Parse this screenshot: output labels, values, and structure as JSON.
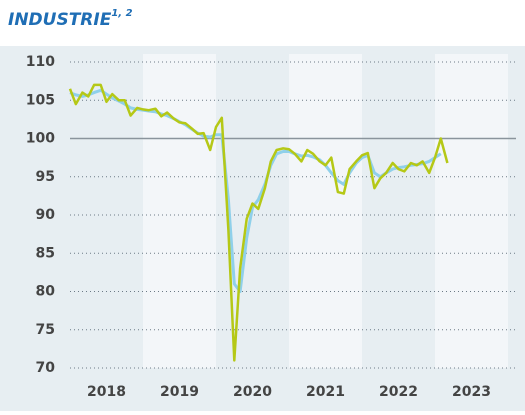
{
  "chart_data": {
    "type": "line",
    "title": "INDUSTRIE",
    "title_superscript": "1, 2",
    "x": [
      2018.0,
      2018.08,
      2018.17,
      2018.25,
      2018.33,
      2018.42,
      2018.5,
      2018.58,
      2018.67,
      2018.75,
      2018.83,
      2018.92,
      2019.0,
      2019.08,
      2019.17,
      2019.25,
      2019.33,
      2019.42,
      2019.5,
      2019.58,
      2019.67,
      2019.75,
      2019.83,
      2019.92,
      2020.0,
      2020.08,
      2020.17,
      2020.25,
      2020.33,
      2020.42,
      2020.5,
      2020.58,
      2020.67,
      2020.75,
      2020.83,
      2020.92,
      2021.0,
      2021.08,
      2021.17,
      2021.25,
      2021.33,
      2021.42,
      2021.5,
      2021.58,
      2021.67,
      2021.75,
      2021.83,
      2021.92,
      2022.0,
      2022.08,
      2022.17,
      2022.25,
      2022.33,
      2022.42,
      2022.5,
      2022.58,
      2022.67,
      2022.75,
      2022.83,
      2022.92,
      2023.0,
      2023.08,
      2023.17
    ],
    "series": [
      {
        "color": "#8fd0ea",
        "values": [
          106,
          105.7,
          105.5,
          105.7,
          106,
          106.3,
          105.8,
          105.3,
          104.9,
          104.5,
          104,
          103.8,
          103.7,
          103.6,
          103.5,
          103.2,
          103,
          102.6,
          102.2,
          101.8,
          101.2,
          100.7,
          100.3,
          100.2,
          100.5,
          100.5,
          92,
          81,
          80,
          87,
          91,
          92,
          94,
          96.5,
          98,
          98.3,
          98.3,
          98,
          97.7,
          97.8,
          97.6,
          97.2,
          96.5,
          95.5,
          94.5,
          94,
          95.5,
          96.8,
          97.5,
          97.8,
          95.5,
          95,
          95.5,
          96,
          96.2,
          96.3,
          96.5,
          96.6,
          96.7,
          97,
          97.5,
          98,
          null
        ]
      },
      {
        "color": "#b5c816",
        "values": [
          106.5,
          104.5,
          106,
          105.5,
          107,
          107,
          104.8,
          105.8,
          105,
          105,
          103,
          104,
          103.8,
          103.7,
          103.9,
          102.9,
          103.4,
          102.6,
          102.1,
          102,
          101.3,
          100.6,
          100.7,
          98.5,
          101.5,
          102.7,
          88,
          71,
          83,
          89.5,
          91.5,
          90.8,
          93.5,
          97,
          98.5,
          98.7,
          98.6,
          98,
          97,
          98.5,
          98,
          97,
          96.5,
          97.5,
          93,
          92.8,
          96,
          97,
          97.8,
          98.1,
          93.5,
          94.8,
          95.5,
          96.8,
          96,
          95.7,
          96.8,
          96.5,
          97,
          95.5,
          97.5,
          100,
          96.8
        ]
      }
    ],
    "xlim": [
      2018,
      2024
    ],
    "xticks": [
      {
        "value": 2018.5,
        "label": "2018"
      },
      {
        "value": 2019.5,
        "label": "2019"
      },
      {
        "value": 2020.5,
        "label": "2020"
      },
      {
        "value": 2021.5,
        "label": "2021"
      },
      {
        "value": 2022.5,
        "label": "2022"
      },
      {
        "value": 2023.5,
        "label": "2023"
      }
    ],
    "ylim": [
      70,
      110
    ],
    "yticks": [
      70,
      75,
      80,
      85,
      90,
      95,
      100,
      105,
      110
    ],
    "reference_line": 100,
    "grid": true
  }
}
